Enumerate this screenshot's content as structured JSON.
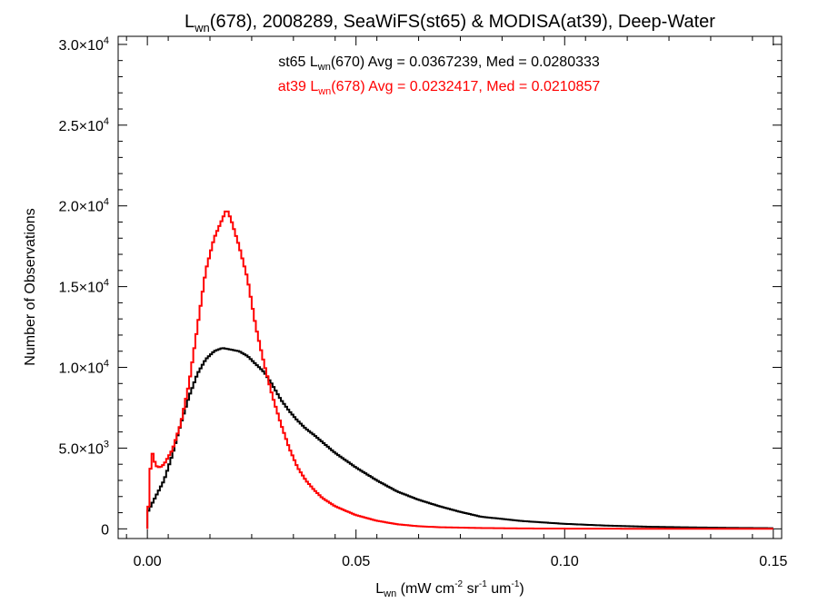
{
  "chart_data": {
    "type": "line",
    "title": {
      "base": "L",
      "sub": "wn",
      "rest": "(678), 2008289, SeaWiFS(st65) & MODISA(at39), Deep-Water"
    },
    "xlabel": {
      "base": "L",
      "sub": "wn",
      "rest1": " (mW cm",
      "sup1": "-2",
      "rest2": " sr",
      "sup2": "-1",
      "rest3": " um",
      "sup3": "-1",
      "rest4": ")"
    },
    "ylabel": "Number of Observations",
    "xlim": [
      -0.007,
      0.152
    ],
    "ylim": [
      -600,
      30500
    ],
    "x_ticks": [
      {
        "value": 0.0,
        "label": "0.00"
      },
      {
        "value": 0.05,
        "label": "0.05"
      },
      {
        "value": 0.1,
        "label": "0.10"
      },
      {
        "value": 0.15,
        "label": "0.15"
      }
    ],
    "y_ticks": [
      {
        "value": 0,
        "mant": "0",
        "exp": ""
      },
      {
        "value": 5000,
        "mant": "5.0×10",
        "exp": "3"
      },
      {
        "value": 10000,
        "mant": "1.0×10",
        "exp": "4"
      },
      {
        "value": 15000,
        "mant": "1.5×10",
        "exp": "4"
      },
      {
        "value": 20000,
        "mant": "2.0×10",
        "exp": "4"
      },
      {
        "value": 25000,
        "mant": "2.5×10",
        "exp": "4"
      },
      {
        "value": 30000,
        "mant": "3.0×10",
        "exp": "4"
      }
    ],
    "grid": false,
    "legend": [
      {
        "prefix": "st65 L",
        "sub": "wn",
        "suffix": "(670) Avg = 0.0367239, Med = 0.0280333",
        "color": "#000000"
      },
      {
        "prefix": "at39 L",
        "sub": "wn",
        "suffix": "(678) Avg = 0.0232417, Med = 0.0210857",
        "color": "#ff0000"
      }
    ],
    "series": [
      {
        "color": "#000000",
        "x": [
          0,
          0.002,
          0.004,
          0.006,
          0.008,
          0.01,
          0.012,
          0.014,
          0.016,
          0.018,
          0.02,
          0.022,
          0.024,
          0.026,
          0.028,
          0.03,
          0.032,
          0.034,
          0.036,
          0.038,
          0.04,
          0.045,
          0.05,
          0.055,
          0.06,
          0.065,
          0.07,
          0.075,
          0.08,
          0.09,
          0.1,
          0.11,
          0.12,
          0.13,
          0.14,
          0.15
        ],
        "y": [
          1000,
          2000,
          3000,
          4600,
          6500,
          8200,
          9600,
          10500,
          11000,
          11200,
          11100,
          11000,
          10700,
          10200,
          9700,
          8900,
          8000,
          7300,
          6700,
          6200,
          5800,
          4700,
          3800,
          3000,
          2300,
          1800,
          1400,
          1050,
          750,
          480,
          310,
          200,
          130,
          90,
          60,
          40
        ]
      },
      {
        "color": "#ff0000",
        "x": [
          0,
          0.001,
          0.002,
          0.003,
          0.004,
          0.006,
          0.008,
          0.01,
          0.012,
          0.014,
          0.016,
          0.018,
          0.019,
          0.02,
          0.022,
          0.024,
          0.026,
          0.028,
          0.03,
          0.032,
          0.034,
          0.036,
          0.038,
          0.04,
          0.042,
          0.045,
          0.05,
          0.055,
          0.06,
          0.065,
          0.07,
          0.08,
          0.09,
          0.1,
          0.11,
          0.12,
          0.13,
          0.14,
          0.15
        ],
        "y": [
          200,
          4900,
          3900,
          3800,
          4000,
          4900,
          6500,
          9000,
          12500,
          16000,
          18000,
          19200,
          19800,
          19200,
          17500,
          15500,
          12500,
          10200,
          8200,
          6500,
          5000,
          3800,
          3000,
          2400,
          1900,
          1400,
          850,
          500,
          280,
          160,
          100,
          50,
          25,
          15,
          10,
          5,
          3,
          2,
          1
        ]
      }
    ]
  }
}
